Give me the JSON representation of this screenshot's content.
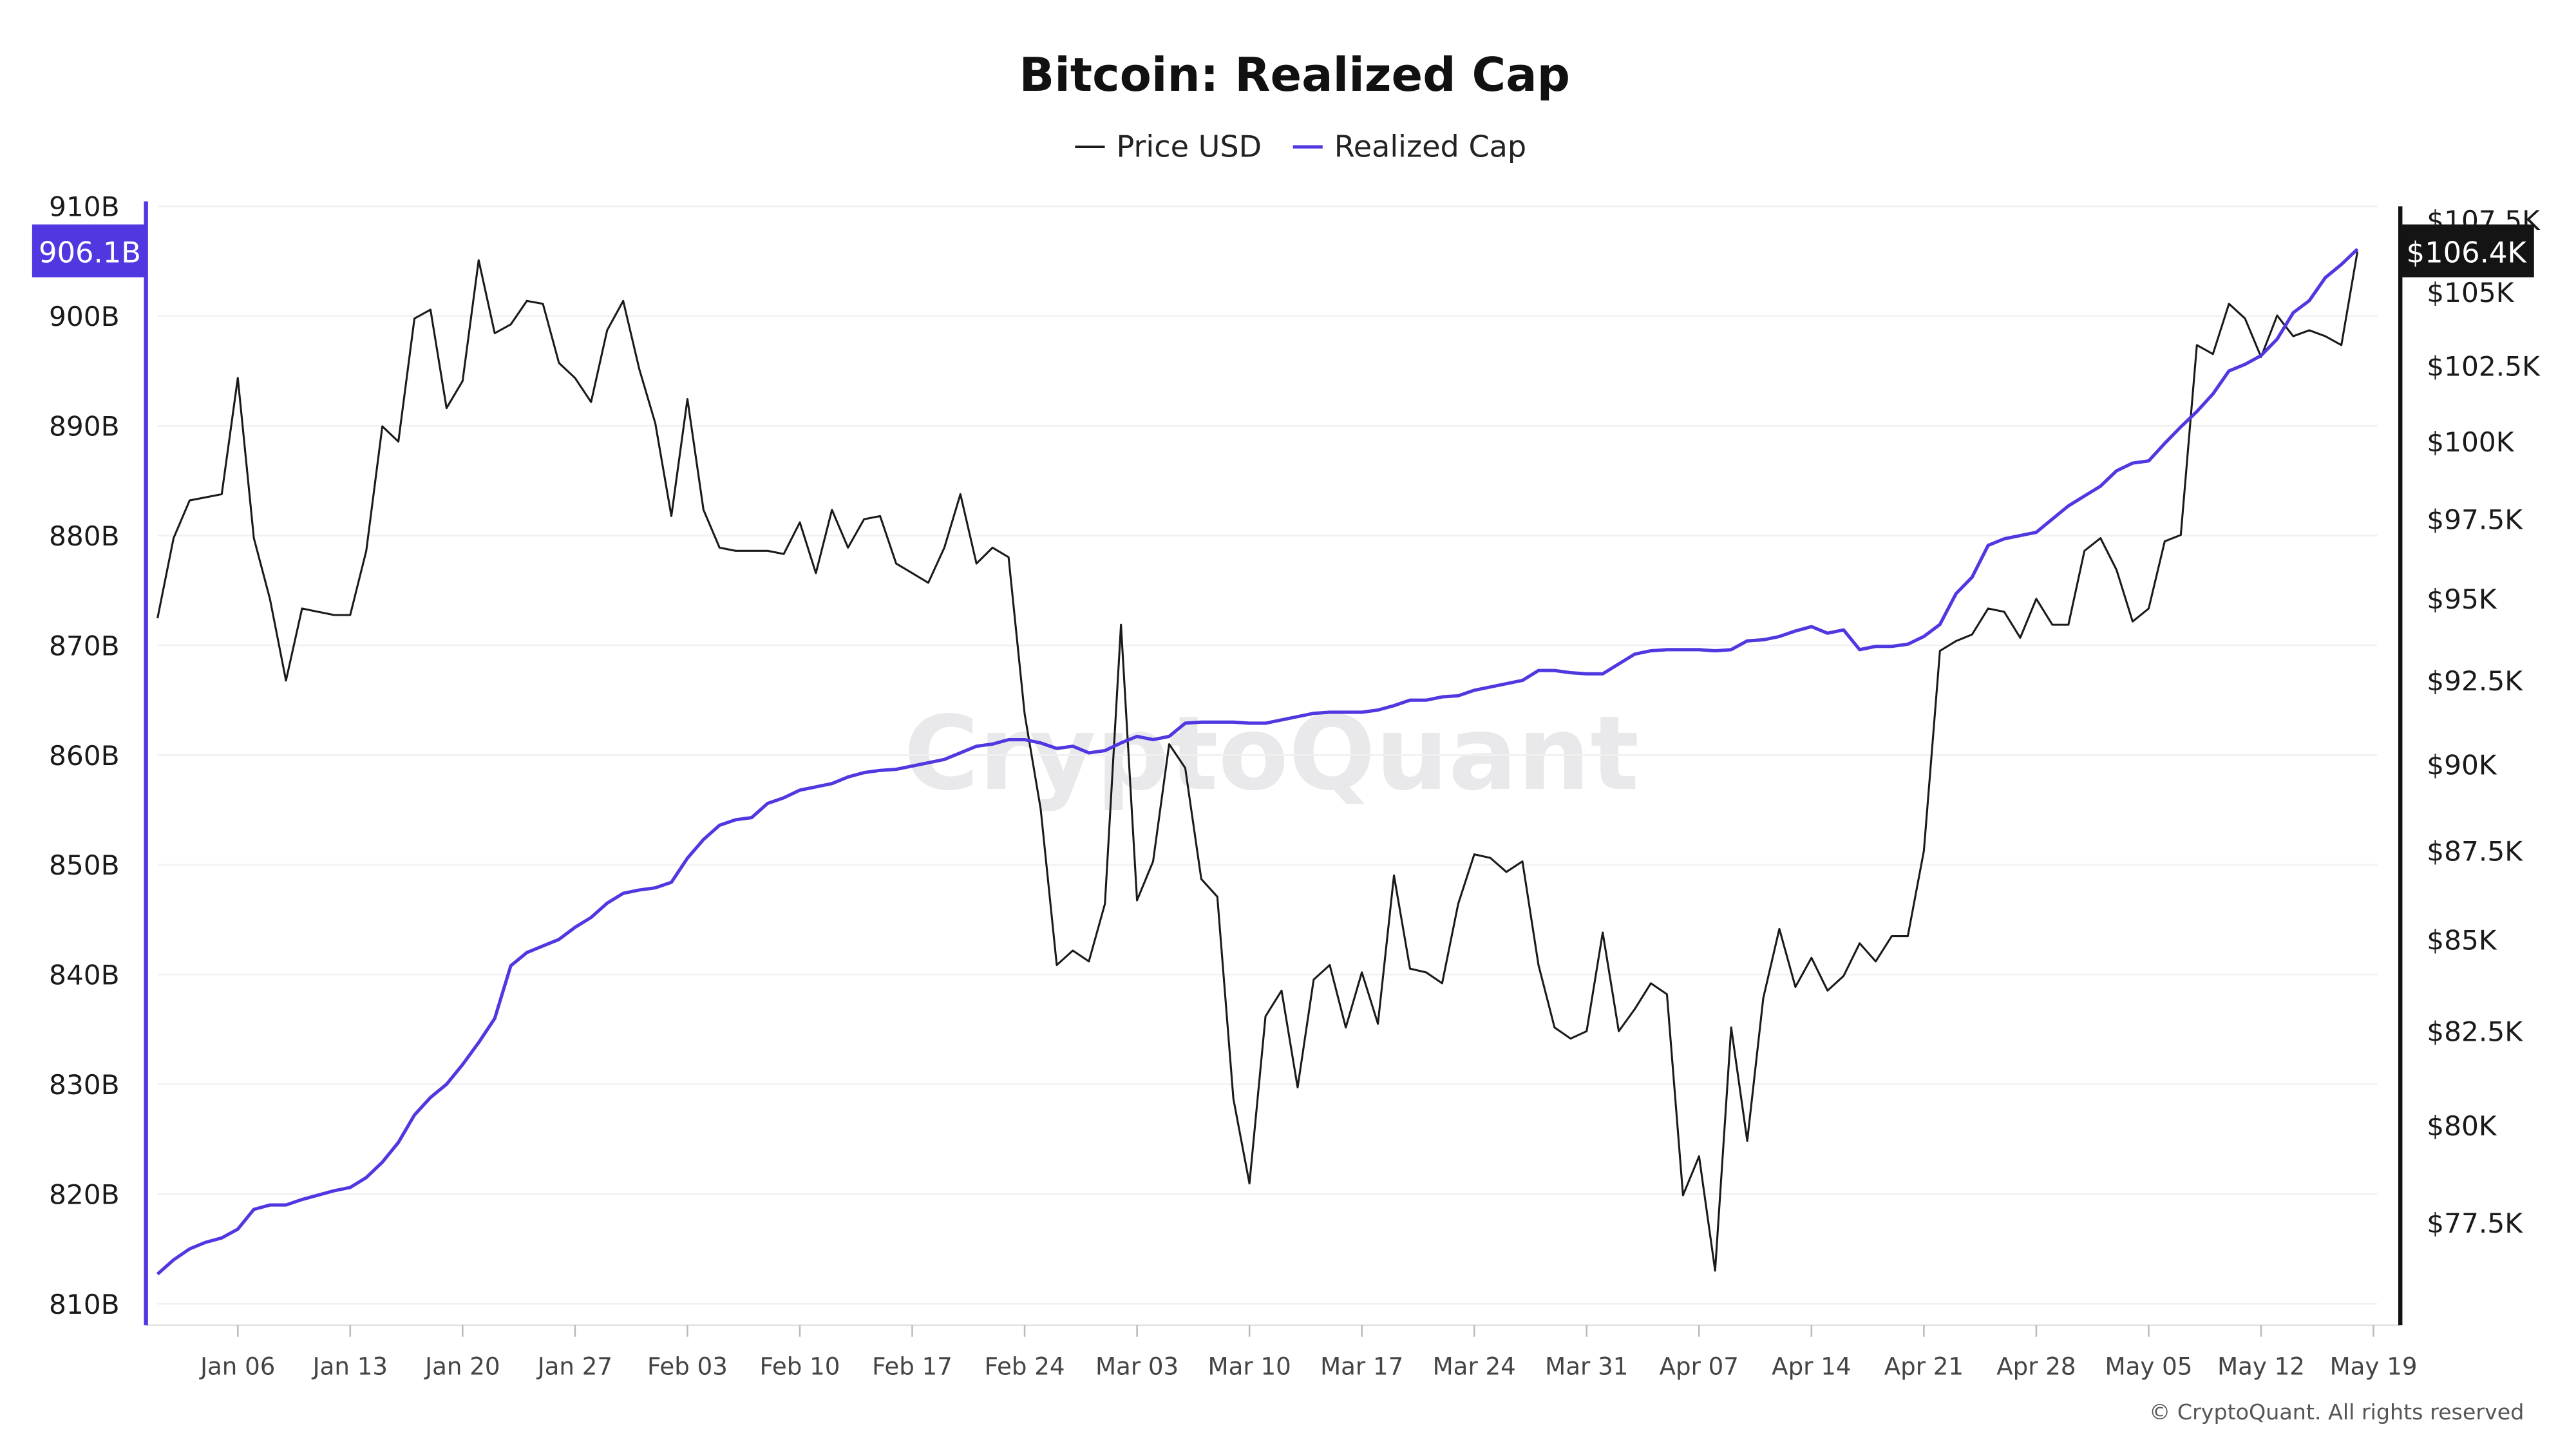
{
  "chart_data": {
    "type": "line",
    "title": "Bitcoin: Realized Cap",
    "legend": {
      "placement": "top-center",
      "entries": [
        "Price USD",
        "Realized Cap"
      ]
    },
    "x_start": "2025-01-01",
    "x_end": "2025-05-18",
    "x_tick_labels": [
      "Jan 06",
      "Jan 13",
      "Jan 20",
      "Jan 27",
      "Feb 03",
      "Feb 10",
      "Feb 17",
      "Feb 24",
      "Mar 03",
      "Mar 10",
      "Mar 17",
      "Mar 24",
      "Mar 31",
      "Apr 07",
      "Apr 14",
      "Apr 21",
      "Apr 28",
      "May 05",
      "May 12",
      "May 19"
    ],
    "left_axis": {
      "series": "Realized Cap",
      "scale": "linear",
      "range": [
        810,
        910
      ],
      "unit": "B",
      "tick_labels": [
        "910B",
        "900B",
        "890B",
        "880B",
        "870B",
        "860B",
        "850B",
        "840B",
        "830B",
        "820B",
        "810B"
      ],
      "ticks": [
        910,
        900,
        890,
        880,
        870,
        860,
        850,
        840,
        830,
        820,
        810
      ],
      "current_label": "906.1B"
    },
    "right_axis": {
      "series": "Price USD",
      "scale": "log",
      "unit": "K USD",
      "tick_labels": [
        "$107.5K",
        "$105K",
        "$102.5K",
        "$100K",
        "$97.5K",
        "$95K",
        "$92.5K",
        "$90K",
        "$87.5K",
        "$85K",
        "$82.5K",
        "$80K",
        "$77.5K"
      ],
      "ticks": [
        107.5,
        105,
        102.5,
        100,
        97.5,
        95,
        92.5,
        90,
        87.5,
        85,
        82.5,
        80,
        77.5
      ],
      "current_label": "$106.4K"
    },
    "grid": true,
    "series": [
      {
        "name": "Price USD",
        "color": "#1a1a1a",
        "unit": "K USD",
        "values": [
          94.4,
          96.9,
          98.1,
          98.2,
          98.3,
          102.1,
          96.9,
          95.0,
          92.5,
          94.7,
          94.6,
          94.5,
          94.5,
          96.5,
          100.5,
          100.0,
          104.1,
          104.4,
          101.1,
          102.0,
          106.1,
          103.6,
          103.9,
          104.7,
          104.6,
          102.6,
          102.1,
          101.3,
          103.7,
          104.7,
          102.4,
          100.6,
          97.6,
          101.4,
          97.8,
          96.6,
          96.5,
          96.5,
          96.5,
          96.4,
          97.4,
          95.8,
          97.8,
          96.6,
          97.5,
          97.6,
          96.1,
          95.8,
          95.5,
          96.6,
          98.3,
          96.1,
          96.6,
          96.3,
          91.5,
          88.7,
          84.3,
          84.7,
          84.4,
          86.0,
          94.2,
          86.1,
          87.2,
          90.6,
          89.9,
          86.7,
          86.2,
          80.7,
          78.5,
          82.9,
          83.6,
          81.0,
          83.9,
          84.3,
          82.6,
          84.1,
          82.7,
          86.8,
          84.2,
          84.1,
          83.8,
          86.0,
          87.4,
          87.3,
          86.9,
          87.2,
          84.3,
          82.6,
          82.3,
          82.5,
          85.2,
          82.5,
          83.1,
          83.8,
          83.5,
          78.2,
          79.2,
          76.3,
          82.6,
          79.6,
          83.4,
          85.3,
          83.7,
          84.5,
          83.6,
          84.0,
          84.9,
          84.4,
          85.1,
          85.1,
          87.5,
          93.4,
          93.7,
          93.9,
          94.7,
          94.6,
          93.8,
          95.0,
          94.2,
          94.2,
          96.5,
          96.9,
          95.9,
          94.3,
          94.7,
          96.8,
          97.0,
          103.2,
          102.9,
          104.6,
          104.1,
          102.8,
          104.2,
          103.5,
          103.7,
          103.5,
          103.2,
          106.4
        ]
      },
      {
        "name": "Realized Cap",
        "color": "#4f38e0",
        "unit": "B USD",
        "values": [
          812.7,
          814.0,
          815.0,
          815.6,
          816.0,
          816.8,
          818.6,
          819.0,
          819.0,
          819.5,
          819.9,
          820.3,
          820.6,
          821.5,
          822.9,
          824.7,
          827.2,
          828.8,
          830.0,
          831.8,
          833.8,
          836.0,
          840.8,
          842.0,
          842.6,
          843.2,
          844.3,
          845.2,
          846.5,
          847.4,
          847.7,
          847.9,
          848.4,
          850.6,
          852.3,
          853.6,
          854.1,
          854.3,
          855.6,
          856.1,
          856.8,
          857.1,
          857.4,
          858.0,
          858.4,
          858.6,
          858.7,
          859.0,
          859.3,
          859.6,
          860.2,
          860.8,
          861.0,
          861.4,
          861.4,
          861.1,
          860.6,
          860.8,
          860.2,
          860.4,
          861.1,
          861.7,
          861.4,
          861.7,
          862.9,
          863.0,
          863.0,
          863.0,
          862.9,
          862.9,
          863.2,
          863.5,
          863.8,
          863.9,
          863.9,
          863.9,
          864.1,
          864.5,
          865.0,
          865.0,
          865.3,
          865.4,
          865.9,
          866.2,
          866.5,
          866.8,
          867.7,
          867.7,
          867.5,
          867.4,
          867.4,
          868.3,
          869.2,
          869.5,
          869.6,
          869.6,
          869.6,
          869.5,
          869.6,
          870.4,
          870.5,
          870.8,
          871.3,
          871.7,
          871.1,
          871.4,
          869.6,
          869.9,
          869.9,
          870.1,
          870.8,
          871.9,
          874.7,
          876.2,
          879.1,
          879.7,
          880.0,
          880.3,
          881.5,
          882.7,
          883.6,
          884.5,
          885.9,
          886.6,
          886.8,
          888.4,
          889.9,
          891.3,
          892.9,
          895.0,
          895.6,
          896.4,
          897.9,
          900.3,
          901.4,
          903.5,
          904.7,
          906.1
        ]
      }
    ],
    "watermark": "CryptoQuant",
    "copyright": "© CryptoQuant. All rights reserved"
  }
}
